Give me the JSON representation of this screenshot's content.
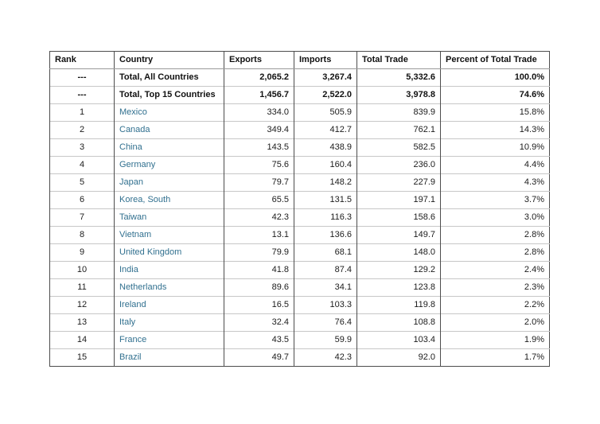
{
  "colors": {
    "country_link": "#31708f",
    "text": "#1c1c1c",
    "border_vertical": "#4d4d4d",
    "border_horizontal": "#c7c7c7",
    "background": "#ffffff"
  },
  "chart_data": {
    "type": "table",
    "columns": [
      "Rank",
      "Country",
      "Exports",
      "Imports",
      "Total Trade",
      "Percent of Total Trade"
    ],
    "summary_rows": [
      [
        "---",
        "Total, All Countries",
        "2,065.2",
        "3,267.4",
        "5,332.6",
        "100.0%"
      ],
      [
        "---",
        "Total, Top 15 Countries",
        "1,456.7",
        "2,522.0",
        "3,978.8",
        "74.6%"
      ]
    ],
    "rows": [
      [
        "1",
        "Mexico",
        "334.0",
        "505.9",
        "839.9",
        "15.8%"
      ],
      [
        "2",
        "Canada",
        "349.4",
        "412.7",
        "762.1",
        "14.3%"
      ],
      [
        "3",
        "China",
        "143.5",
        "438.9",
        "582.5",
        "10.9%"
      ],
      [
        "4",
        "Germany",
        "75.6",
        "160.4",
        "236.0",
        "4.4%"
      ],
      [
        "5",
        "Japan",
        "79.7",
        "148.2",
        "227.9",
        "4.3%"
      ],
      [
        "6",
        "Korea, South",
        "65.5",
        "131.5",
        "197.1",
        "3.7%"
      ],
      [
        "7",
        "Taiwan",
        "42.3",
        "116.3",
        "158.6",
        "3.0%"
      ],
      [
        "8",
        "Vietnam",
        "13.1",
        "136.6",
        "149.7",
        "2.8%"
      ],
      [
        "9",
        "United Kingdom",
        "79.9",
        "68.1",
        "148.0",
        "2.8%"
      ],
      [
        "10",
        "India",
        "41.8",
        "87.4",
        "129.2",
        "2.4%"
      ],
      [
        "11",
        "Netherlands",
        "89.6",
        "34.1",
        "123.8",
        "2.3%"
      ],
      [
        "12",
        "Ireland",
        "16.5",
        "103.3",
        "119.8",
        "2.2%"
      ],
      [
        "13",
        "Italy",
        "32.4",
        "76.4",
        "108.8",
        "2.0%"
      ],
      [
        "14",
        "France",
        "43.5",
        "59.9",
        "103.4",
        "1.9%"
      ],
      [
        "15",
        "Brazil",
        "49.7",
        "42.3",
        "92.0",
        "1.7%"
      ]
    ]
  }
}
